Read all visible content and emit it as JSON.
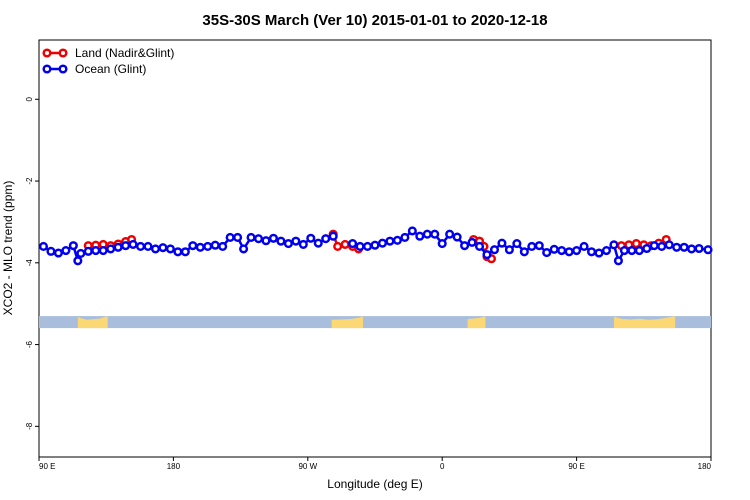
{
  "chart_data": {
    "type": "line",
    "title": "35S-30S March (Ver 10)   2015-01-01 to 2020-12-18",
    "xlabel": "Longitude (deg E)",
    "ylabel": "XCO2 - MLO trend (ppm)",
    "xlim": [
      90,
      540
    ],
    "ylim": [
      -8.75,
      1.45
    ],
    "x_ticks": [
      {
        "value": 90,
        "label": "90 E"
      },
      {
        "value": 180,
        "label": "180"
      },
      {
        "value": 270,
        "label": "90 W"
      },
      {
        "value": 360,
        "label": "0"
      },
      {
        "value": 450,
        "label": "90 E"
      },
      {
        "value": 540,
        "label": "180"
      }
    ],
    "y_ticks": [
      {
        "value": 0,
        "label": "0"
      },
      {
        "value": -2,
        "label": "-2"
      },
      {
        "value": -4,
        "label": "-4"
      },
      {
        "value": -6,
        "label": "-6"
      },
      {
        "value": -8,
        "label": "-8"
      }
    ],
    "legend": {
      "position": "top-left"
    },
    "series": [
      {
        "name": "Land (Nadir&Glint)",
        "color": "#ee0000",
        "points": [
          {
            "x": 123,
            "y": -3.58
          },
          {
            "x": 128,
            "y": -3.57
          },
          {
            "x": 133,
            "y": -3.55
          },
          {
            "x": 138,
            "y": -3.58
          },
          {
            "x": 143,
            "y": -3.54
          },
          {
            "x": 148,
            "y": -3.48
          },
          {
            "x": 152,
            "y": -3.43
          },
          {
            "x": 287,
            "y": -3.3
          },
          {
            "x": 290,
            "y": -3.6
          },
          {
            "x": 295,
            "y": -3.55
          },
          {
            "x": 300,
            "y": -3.6
          },
          {
            "x": 304,
            "y": -3.66
          },
          {
            "x": 381,
            "y": -3.43
          },
          {
            "x": 385,
            "y": -3.47
          },
          {
            "x": 388,
            "y": -3.6
          },
          {
            "x": 390,
            "y": -3.85
          },
          {
            "x": 393,
            "y": -3.9
          },
          {
            "x": 480,
            "y": -3.58
          },
          {
            "x": 485,
            "y": -3.56
          },
          {
            "x": 490,
            "y": -3.53
          },
          {
            "x": 495,
            "y": -3.56
          },
          {
            "x": 500,
            "y": -3.58
          },
          {
            "x": 505,
            "y": -3.52
          },
          {
            "x": 510,
            "y": -3.43
          }
        ]
      },
      {
        "name": "Ocean (Glint)",
        "color": "#0000ee",
        "points": [
          {
            "x": 93,
            "y": -3.6
          },
          {
            "x": 98,
            "y": -3.72
          },
          {
            "x": 103,
            "y": -3.76
          },
          {
            "x": 108,
            "y": -3.7
          },
          {
            "x": 113,
            "y": -3.58
          },
          {
            "x": 116,
            "y": -3.95
          },
          {
            "x": 118,
            "y": -3.77
          },
          {
            "x": 123,
            "y": -3.72
          },
          {
            "x": 128,
            "y": -3.7
          },
          {
            "x": 133,
            "y": -3.7
          },
          {
            "x": 138,
            "y": -3.66
          },
          {
            "x": 143,
            "y": -3.62
          },
          {
            "x": 148,
            "y": -3.58
          },
          {
            "x": 153,
            "y": -3.55
          },
          {
            "x": 158,
            "y": -3.6
          },
          {
            "x": 163,
            "y": -3.6
          },
          {
            "x": 168,
            "y": -3.66
          },
          {
            "x": 173,
            "y": -3.63
          },
          {
            "x": 178,
            "y": -3.66
          },
          {
            "x": 183,
            "y": -3.73
          },
          {
            "x": 188,
            "y": -3.73
          },
          {
            "x": 193,
            "y": -3.58
          },
          {
            "x": 198,
            "y": -3.62
          },
          {
            "x": 203,
            "y": -3.6
          },
          {
            "x": 208,
            "y": -3.57
          },
          {
            "x": 213,
            "y": -3.6
          },
          {
            "x": 218,
            "y": -3.38
          },
          {
            "x": 223,
            "y": -3.38
          },
          {
            "x": 227,
            "y": -3.66
          },
          {
            "x": 232,
            "y": -3.38
          },
          {
            "x": 237,
            "y": -3.41
          },
          {
            "x": 242,
            "y": -3.46
          },
          {
            "x": 247,
            "y": -3.4
          },
          {
            "x": 252,
            "y": -3.47
          },
          {
            "x": 257,
            "y": -3.53
          },
          {
            "x": 262,
            "y": -3.47
          },
          {
            "x": 267,
            "y": -3.55
          },
          {
            "x": 272,
            "y": -3.4
          },
          {
            "x": 277,
            "y": -3.52
          },
          {
            "x": 282,
            "y": -3.41
          },
          {
            "x": 287,
            "y": -3.35
          },
          {
            "x": 300,
            "y": -3.53
          },
          {
            "x": 305,
            "y": -3.6
          },
          {
            "x": 310,
            "y": -3.6
          },
          {
            "x": 315,
            "y": -3.57
          },
          {
            "x": 320,
            "y": -3.52
          },
          {
            "x": 325,
            "y": -3.47
          },
          {
            "x": 330,
            "y": -3.45
          },
          {
            "x": 335,
            "y": -3.38
          },
          {
            "x": 340,
            "y": -3.22
          },
          {
            "x": 345,
            "y": -3.35
          },
          {
            "x": 350,
            "y": -3.3
          },
          {
            "x": 355,
            "y": -3.3
          },
          {
            "x": 360,
            "y": -3.53
          },
          {
            "x": 365,
            "y": -3.3
          },
          {
            "x": 370,
            "y": -3.37
          },
          {
            "x": 375,
            "y": -3.58
          },
          {
            "x": 380,
            "y": -3.5
          },
          {
            "x": 385,
            "y": -3.6
          },
          {
            "x": 390,
            "y": -3.8
          },
          {
            "x": 395,
            "y": -3.68
          },
          {
            "x": 400,
            "y": -3.52
          },
          {
            "x": 405,
            "y": -3.68
          },
          {
            "x": 410,
            "y": -3.53
          },
          {
            "x": 415,
            "y": -3.73
          },
          {
            "x": 420,
            "y": -3.6
          },
          {
            "x": 425,
            "y": -3.58
          },
          {
            "x": 430,
            "y": -3.75
          },
          {
            "x": 435,
            "y": -3.67
          },
          {
            "x": 440,
            "y": -3.7
          },
          {
            "x": 445,
            "y": -3.73
          },
          {
            "x": 450,
            "y": -3.7
          },
          {
            "x": 455,
            "y": -3.6
          },
          {
            "x": 460,
            "y": -3.73
          },
          {
            "x": 465,
            "y": -3.76
          },
          {
            "x": 470,
            "y": -3.7
          },
          {
            "x": 475,
            "y": -3.56
          },
          {
            "x": 478,
            "y": -3.95
          },
          {
            "x": 482,
            "y": -3.7
          },
          {
            "x": 487,
            "y": -3.7
          },
          {
            "x": 492,
            "y": -3.7
          },
          {
            "x": 497,
            "y": -3.65
          },
          {
            "x": 502,
            "y": -3.58
          },
          {
            "x": 507,
            "y": -3.6
          },
          {
            "x": 512,
            "y": -3.56
          },
          {
            "x": 517,
            "y": -3.62
          },
          {
            "x": 522,
            "y": -3.62
          },
          {
            "x": 527,
            "y": -3.66
          },
          {
            "x": 532,
            "y": -3.65
          },
          {
            "x": 538,
            "y": -3.68
          }
        ]
      }
    ],
    "surface_strip": {
      "y": -5.45,
      "ocean_color": "#a8bedc",
      "land_color": "#fbd874",
      "land_segments": [
        {
          "x": [
            116,
            136
          ],
          "bumps": [
            [
              116,
              0.1
            ],
            [
              122,
              0.3
            ],
            [
              127,
              0.25
            ],
            [
              131,
              0.2
            ],
            [
              136,
              0
            ]
          ]
        },
        {
          "x": [
            286,
            307
          ],
          "bumps": [
            [
              286,
              0.3
            ],
            [
              292,
              0.28
            ],
            [
              298,
              0.25
            ],
            [
              304,
              0.15
            ],
            [
              307,
              0
            ]
          ]
        },
        {
          "x": [
            377,
            389
          ],
          "bumps": [
            [
              377,
              0.25
            ],
            [
              381,
              0.2
            ],
            [
              385,
              0.15
            ],
            [
              389,
              0
            ]
          ]
        },
        {
          "x": [
            475,
            516
          ],
          "bumps": [
            [
              475,
              0.05
            ],
            [
              480,
              0.22
            ],
            [
              486,
              0.28
            ],
            [
              492,
              0.22
            ],
            [
              498,
              0.3
            ],
            [
              505,
              0.25
            ],
            [
              510,
              0.15
            ],
            [
              516,
              0
            ]
          ]
        }
      ]
    }
  }
}
